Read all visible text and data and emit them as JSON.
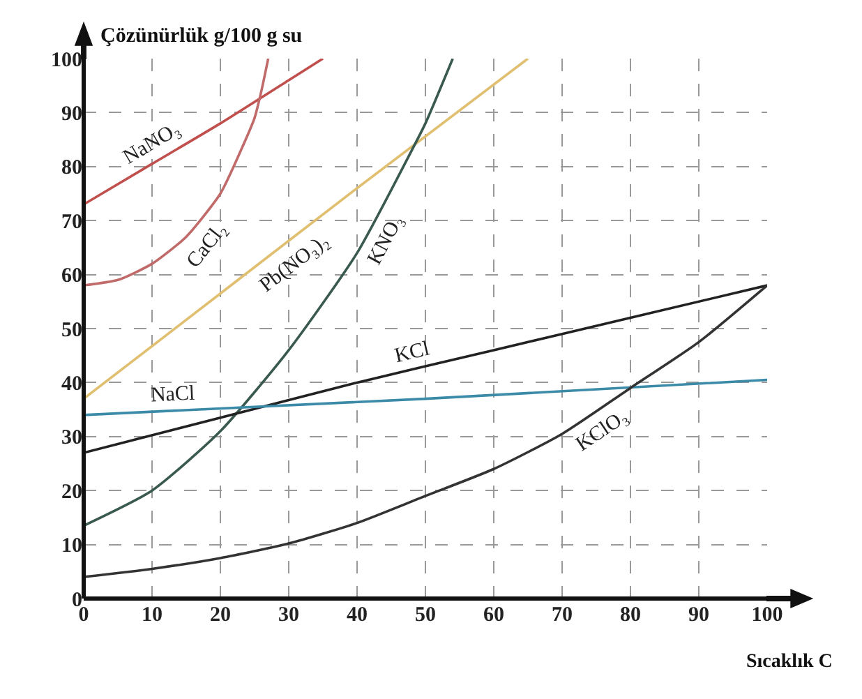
{
  "chart_data": {
    "type": "line",
    "xlabel": "Sıcaklık C",
    "ylabel": "Çözünürlük g/100 g su",
    "xlim": [
      0,
      100
    ],
    "ylim": [
      0,
      100
    ],
    "xticks": [
      0,
      10,
      20,
      30,
      40,
      50,
      60,
      70,
      80,
      90,
      100
    ],
    "yticks": [
      0,
      10,
      20,
      30,
      40,
      50,
      60,
      70,
      80,
      90,
      100
    ],
    "grid": true,
    "legend": false,
    "marker": "none",
    "line_style": "solid",
    "series": [
      {
        "name": "NaNO₃",
        "color": "#c0504d",
        "x": [
          0,
          10,
          20,
          30,
          35
        ],
        "values": [
          73,
          80.5,
          88,
          96,
          100
        ]
      },
      {
        "name": "CaCl₂",
        "color": "#c06a6a",
        "x": [
          0,
          5,
          10,
          15,
          20,
          23,
          25,
          26,
          27
        ],
        "values": [
          58,
          59,
          62,
          67,
          75,
          83,
          89,
          94,
          100
        ]
      },
      {
        "name": "Pb(NO₃)₂",
        "color": "#e0c070",
        "x": [
          0,
          20,
          40,
          65
        ],
        "values": [
          37,
          56.5,
          76,
          100
        ]
      },
      {
        "name": "KNO₃",
        "color": "#3a5a50",
        "x": [
          0,
          10,
          20,
          30,
          40,
          48,
          50,
          54
        ],
        "values": [
          13.5,
          20,
          31,
          46,
          64,
          83,
          88,
          100
        ]
      },
      {
        "name": "KCl",
        "color": "#222222",
        "x": [
          0,
          20,
          40,
          60,
          80,
          100
        ],
        "values": [
          27,
          33.5,
          40,
          46,
          52,
          58
        ]
      },
      {
        "name": "NaCl",
        "color": "#3a8aa8",
        "x": [
          0,
          50,
          100
        ],
        "values": [
          34,
          37,
          40.5
        ]
      },
      {
        "name": "KClO₃",
        "color": "#333333",
        "x": [
          0,
          10,
          20,
          30,
          40,
          50,
          60,
          70,
          80,
          90,
          100
        ],
        "values": [
          4,
          5.5,
          7.5,
          10.2,
          14,
          19,
          24,
          30.5,
          39,
          47.5,
          58
        ]
      }
    ]
  }
}
